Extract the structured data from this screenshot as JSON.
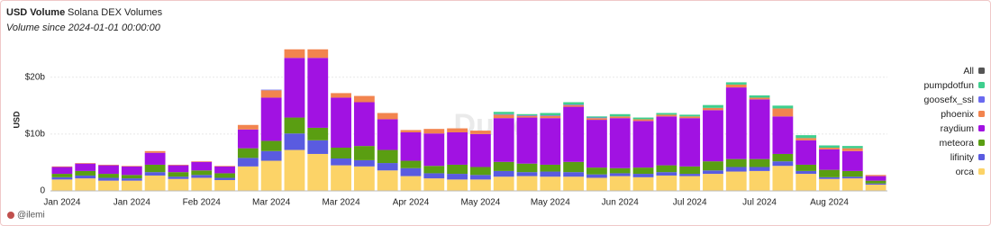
{
  "chart_data": {
    "type": "stacked_bar",
    "title": "USD Volume",
    "subtitle": "Solana DEX Volumes",
    "caption": "Volume since 2024-01-01 00:00:00",
    "y_label": "USD",
    "author": "@ilemi",
    "watermark": "Dune",
    "legend_total": {
      "name": "All",
      "color": "#555555"
    },
    "categories": [
      "Jan 2024",
      null,
      null,
      "Jan 2024",
      null,
      null,
      "Feb 2024",
      null,
      null,
      "Mar 2024",
      null,
      null,
      "Mar 2024",
      null,
      null,
      "Apr 2024",
      null,
      null,
      "May 2024",
      null,
      null,
      "May 2024",
      null,
      null,
      "Jun 2024",
      null,
      null,
      "Jul 2024",
      null,
      null,
      "Jul 2024",
      null,
      null,
      "Aug 2024",
      null,
      null
    ],
    "ylim": [
      0,
      25.5
    ],
    "yticks": [
      0,
      {
        "value": 10,
        "label": "$10b"
      },
      {
        "value": 20,
        "label": "$20b"
      }
    ],
    "series": [
      {
        "name": "orca",
        "color": "#fcd367",
        "values": [
          2.0,
          2.2,
          1.8,
          1.8,
          2.7,
          2.1,
          2.3,
          1.9,
          4.3,
          5.3,
          7.2,
          6.5,
          4.5,
          4.3,
          3.6,
          2.6,
          2.2,
          2.0,
          2.0,
          2.5,
          2.6,
          2.5,
          2.5,
          2.3,
          2.6,
          2.4,
          2.7,
          2.6,
          3.0,
          3.4,
          3.5,
          4.4,
          3.0,
          2.1,
          2.2,
          1.1
        ]
      },
      {
        "name": "lifinity",
        "color": "#5a5be0",
        "values": [
          0.4,
          0.5,
          0.5,
          0.4,
          0.6,
          0.4,
          0.5,
          0.4,
          1.5,
          1.7,
          2.9,
          2.4,
          1.2,
          1.1,
          1.3,
          1.4,
          0.9,
          1.0,
          0.8,
          1.0,
          0.7,
          0.9,
          0.8,
          0.6,
          0.5,
          0.6,
          0.6,
          0.4,
          0.6,
          0.8,
          0.7,
          0.8,
          0.5,
          0.3,
          0.3,
          0.2
        ]
      },
      {
        "name": "meteora",
        "color": "#5a9e12",
        "values": [
          0.6,
          0.8,
          0.7,
          0.6,
          1.3,
          0.8,
          0.8,
          0.8,
          1.7,
          1.8,
          2.8,
          2.2,
          1.9,
          2.5,
          2.3,
          1.3,
          1.3,
          1.6,
          1.4,
          1.6,
          1.5,
          1.2,
          1.8,
          1.2,
          0.9,
          1.1,
          1.2,
          1.3,
          1.6,
          1.4,
          1.4,
          1.3,
          1.1,
          1.3,
          1.0,
          0.5
        ]
      },
      {
        "name": "raydium",
        "color": "#a112e2",
        "values": [
          1.2,
          1.3,
          1.5,
          1.5,
          2.1,
          1.2,
          1.5,
          1.2,
          3.3,
          7.6,
          10.5,
          12.3,
          8.8,
          7.7,
          5.4,
          5.0,
          5.7,
          5.7,
          5.8,
          7.7,
          8.1,
          8.2,
          9.7,
          8.4,
          8.8,
          8.2,
          8.6,
          8.5,
          9.0,
          12.6,
          10.5,
          6.6,
          4.3,
          3.6,
          3.5,
          0.8
        ]
      },
      {
        "name": "phoenix",
        "color": "#f2844e",
        "values": [
          0.1,
          0.1,
          0.1,
          0.1,
          0.3,
          0.1,
          0.1,
          0.1,
          0.8,
          1.3,
          1.5,
          1.5,
          0.8,
          1.1,
          1.1,
          0.4,
          0.8,
          0.7,
          0.6,
          0.6,
          0.3,
          0.4,
          0.3,
          0.3,
          0.3,
          0.3,
          0.3,
          0.3,
          0.4,
          0.5,
          0.3,
          1.4,
          0.4,
          0.3,
          0.5,
          0.2
        ]
      },
      {
        "name": "goosefx_ssl",
        "color": "#6a6af0",
        "values": [
          0,
          0,
          0,
          0,
          0,
          0,
          0,
          0,
          0,
          0.1,
          0,
          0,
          0,
          0,
          0,
          0,
          0,
          0,
          0,
          0.1,
          0.1,
          0.1,
          0.1,
          0.1,
          0,
          0,
          0,
          0,
          0,
          0,
          0,
          0,
          0,
          0,
          0,
          0
        ]
      },
      {
        "name": "pumpdotfun",
        "color": "#3ecf8e",
        "values": [
          0,
          0,
          0,
          0,
          0,
          0,
          0,
          0,
          0,
          0,
          0,
          0,
          0,
          0,
          0,
          0,
          0,
          0,
          0,
          0.4,
          0.2,
          0.4,
          0.4,
          0.2,
          0.4,
          0.3,
          0.3,
          0.3,
          0.5,
          0.4,
          0.4,
          0.5,
          0.5,
          0.4,
          0.4,
          0
        ]
      }
    ]
  }
}
